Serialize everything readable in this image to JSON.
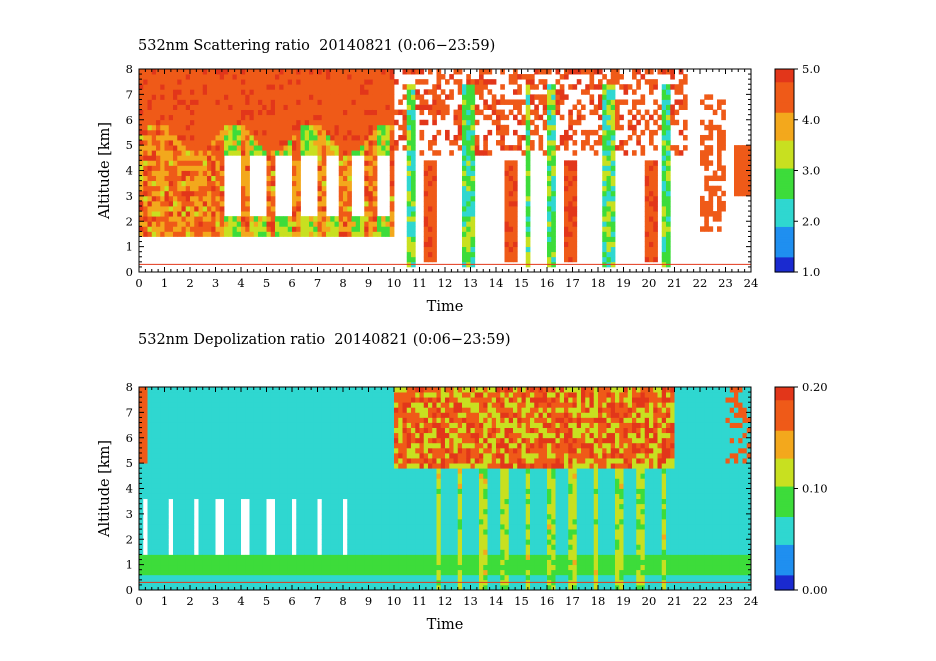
{
  "chart_data": [
    {
      "type": "heatmap",
      "title": "532nm Scattering ratio  20140821 (0:06−23:59)",
      "xlabel": "Time",
      "ylabel": "Altitude [km]",
      "xlim": [
        0,
        24
      ],
      "ylim": [
        0,
        8
      ],
      "xticks": [
        "0",
        "1",
        "2",
        "3",
        "4",
        "5",
        "6",
        "7",
        "8",
        "9",
        "10",
        "11",
        "12",
        "13",
        "14",
        "15",
        "16",
        "17",
        "18",
        "19",
        "20",
        "21",
        "22",
        "23",
        "24"
      ],
      "yticks": [
        "0",
        "1",
        "2",
        "3",
        "4",
        "5",
        "6",
        "7",
        "8"
      ],
      "colorbar": {
        "range": [
          1.0,
          5.0
        ],
        "ticks": [
          "1.0",
          "2.0",
          "3.0",
          "4.0",
          "5.0"
        ],
        "colormap": [
          "#1a2ad0",
          "#1f8ff0",
          "#2fd7d0",
          "#3ddc3a",
          "#c8e020",
          "#f3a81c",
          "#ef5a18",
          "#e2361a"
        ]
      },
      "background": "#ffffff"
    },
    {
      "type": "heatmap",
      "title": "532nm Depolization ratio  20140821 (0:06−23:59)",
      "xlabel": "Time",
      "ylabel": "Altitude [km]",
      "xlim": [
        0,
        24
      ],
      "ylim": [
        0,
        8
      ],
      "xticks": [
        "0",
        "1",
        "2",
        "3",
        "4",
        "5",
        "6",
        "7",
        "8",
        "9",
        "10",
        "11",
        "12",
        "13",
        "14",
        "15",
        "16",
        "17",
        "18",
        "19",
        "20",
        "21",
        "22",
        "23",
        "24"
      ],
      "yticks": [
        "0",
        "1",
        "2",
        "3",
        "4",
        "5",
        "6",
        "7",
        "8"
      ],
      "colorbar": {
        "range": [
          0.0,
          0.2
        ],
        "ticks": [
          "0.00",
          "0.10",
          "0.20"
        ],
        "colormap": [
          "#1a2ad0",
          "#1f8ff0",
          "#2fd7d0",
          "#3ddc3a",
          "#c8e020",
          "#f3a81c",
          "#ef5a18",
          "#e2361a"
        ]
      },
      "background": "#1f8ff0"
    }
  ]
}
